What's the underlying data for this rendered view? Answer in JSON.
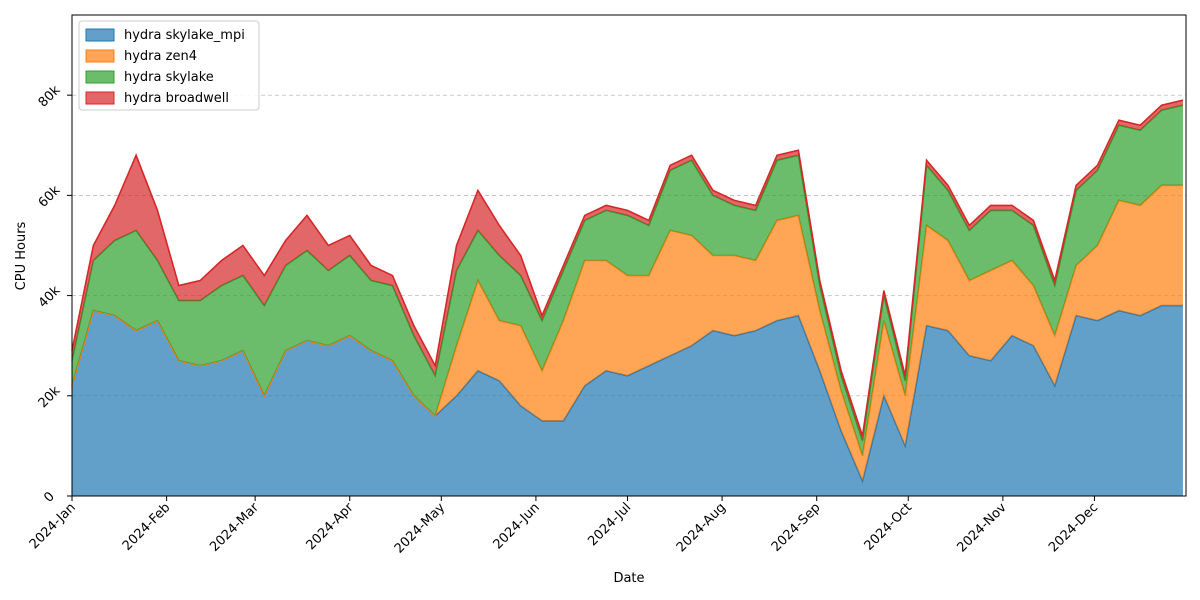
{
  "chart_data": {
    "type": "area",
    "stacked": true,
    "title": "",
    "xlabel": "Date",
    "ylabel": "CPU Hours",
    "xlim": [
      "2024-01-01",
      "2024-12-31"
    ],
    "ylim": [
      0,
      96000
    ],
    "grid": "y-dashed",
    "legend_position": "top-left",
    "x_ticks": [
      {
        "date": "2024-01-01",
        "label": "2024-Jan"
      },
      {
        "date": "2024-02-01",
        "label": "2024-Feb"
      },
      {
        "date": "2024-03-01",
        "label": "2024-Mar"
      },
      {
        "date": "2024-04-01",
        "label": "2024-Apr"
      },
      {
        "date": "2024-05-01",
        "label": "2024-May"
      },
      {
        "date": "2024-06-01",
        "label": "2024-Jun"
      },
      {
        "date": "2024-07-01",
        "label": "2024-Jul"
      },
      {
        "date": "2024-08-01",
        "label": "2024-Aug"
      },
      {
        "date": "2024-09-01",
        "label": "2024-Sep"
      },
      {
        "date": "2024-10-01",
        "label": "2024-Oct"
      },
      {
        "date": "2024-11-01",
        "label": "2024-Nov"
      },
      {
        "date": "2024-12-01",
        "label": "2024-Dec"
      }
    ],
    "y_ticks": [
      {
        "value": 0,
        "label": "0"
      },
      {
        "value": 20000,
        "label": "20k"
      },
      {
        "value": 40000,
        "label": "40k"
      },
      {
        "value": 60000,
        "label": "60k"
      },
      {
        "value": 80000,
        "label": "80k"
      }
    ],
    "x": [
      "2024-01-01",
      "2024-01-08",
      "2024-01-15",
      "2024-01-22",
      "2024-01-29",
      "2024-02-05",
      "2024-02-12",
      "2024-02-19",
      "2024-02-26",
      "2024-03-04",
      "2024-03-11",
      "2024-03-18",
      "2024-03-25",
      "2024-04-01",
      "2024-04-08",
      "2024-04-15",
      "2024-04-22",
      "2024-04-29",
      "2024-05-06",
      "2024-05-13",
      "2024-05-20",
      "2024-05-27",
      "2024-06-03",
      "2024-06-10",
      "2024-06-17",
      "2024-06-24",
      "2024-07-01",
      "2024-07-08",
      "2024-07-15",
      "2024-07-22",
      "2024-07-29",
      "2024-08-05",
      "2024-08-12",
      "2024-08-19",
      "2024-08-26",
      "2024-09-02",
      "2024-09-09",
      "2024-09-16",
      "2024-09-23",
      "2024-09-30",
      "2024-10-07",
      "2024-10-14",
      "2024-10-21",
      "2024-10-28",
      "2024-11-04",
      "2024-11-11",
      "2024-11-18",
      "2024-11-25",
      "2024-12-02",
      "2024-12-09",
      "2024-12-16",
      "2024-12-23",
      "2024-12-30"
    ],
    "series": [
      {
        "name": "hydra skylake_mpi",
        "color": "#1f77b4",
        "values": [
          22000,
          37000,
          36000,
          33000,
          35000,
          27000,
          26000,
          27000,
          29000,
          20000,
          29000,
          31000,
          30000,
          32000,
          29000,
          27000,
          20000,
          16000,
          20000,
          25000,
          23000,
          18000,
          15000,
          15000,
          22000,
          25000,
          24000,
          26000,
          28000,
          30000,
          33000,
          32000,
          33000,
          35000,
          36000,
          25000,
          13000,
          3000,
          20000,
          10000,
          34000,
          33000,
          28000,
          27000,
          32000,
          30000,
          22000,
          36000,
          35000,
          37000,
          36000,
          38000,
          38000
        ]
      },
      {
        "name": "hydra zen4",
        "color": "#ff7f0e",
        "values": [
          0,
          0,
          0,
          0,
          0,
          0,
          0,
          0,
          0,
          0,
          0,
          0,
          0,
          0,
          0,
          0,
          0,
          0,
          10000,
          18000,
          12000,
          16000,
          10000,
          20000,
          25000,
          22000,
          20000,
          18000,
          25000,
          22000,
          15000,
          16000,
          14000,
          20000,
          20000,
          12000,
          8000,
          5000,
          15000,
          10000,
          20000,
          18000,
          15000,
          18000,
          15000,
          12000,
          10000,
          10000,
          15000,
          22000,
          22000,
          24000,
          24000
        ]
      },
      {
        "name": "hydra skylake",
        "color": "#2ca02c",
        "values": [
          5000,
          10000,
          15000,
          20000,
          12000,
          12000,
          13000,
          15000,
          15000,
          18000,
          17000,
          18000,
          15000,
          16000,
          14000,
          15000,
          12000,
          8000,
          15000,
          10000,
          13000,
          10000,
          10000,
          10000,
          8000,
          10000,
          12000,
          10000,
          12000,
          15000,
          12000,
          10000,
          10000,
          12000,
          12000,
          5000,
          3000,
          3000,
          5000,
          3000,
          12000,
          10000,
          10000,
          12000,
          10000,
          12000,
          10000,
          15000,
          15000,
          15000,
          15000,
          15000,
          16000
        ]
      },
      {
        "name": "hydra broadwell",
        "color": "#d62728",
        "values": [
          2000,
          3000,
          7000,
          15000,
          10000,
          3000,
          4000,
          5000,
          6000,
          6000,
          5000,
          7000,
          5000,
          4000,
          3000,
          2000,
          2000,
          2000,
          5000,
          8000,
          6000,
          4000,
          1000,
          1000,
          1000,
          1000,
          1000,
          1000,
          1000,
          1000,
          1000,
          1000,
          1000,
          1000,
          1000,
          1000,
          1000,
          1000,
          1000,
          1000,
          1000,
          1000,
          1000,
          1000,
          1000,
          1000,
          1000,
          1000,
          1000,
          1000,
          1000,
          1000,
          1000
        ]
      }
    ]
  }
}
